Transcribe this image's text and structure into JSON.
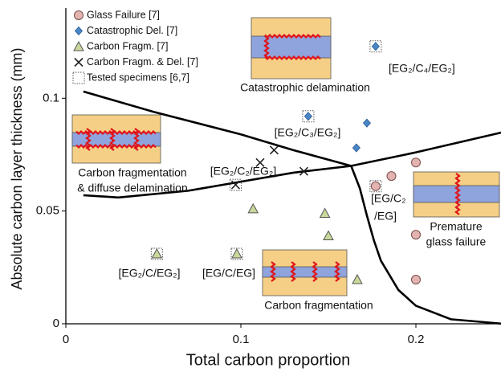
{
  "chart_data": {
    "type": "scatter",
    "xlabel": "Total carbon proportion",
    "ylabel": "Absolute carbon layer thickness (mm)",
    "xlim": [
      0,
      0.25
    ],
    "ylim": [
      0,
      0.14
    ],
    "xticks": [
      0,
      0.1,
      0.2
    ],
    "yticks": [
      0,
      0.05,
      0.1
    ],
    "grid": false,
    "legend": "upper left",
    "series": [
      {
        "name": "Glass Failure [7]",
        "color": "#e3b3b0",
        "marker": "circle",
        "x": [
          0.186,
          0.2,
          0.2,
          0.2,
          0.177
        ],
        "values": [
          0.0655,
          0.0715,
          0.0395,
          0.0196,
          0.061
        ]
      },
      {
        "name": "Catastrophic Del. [7]",
        "color": "#4a86c8",
        "marker": "diamond",
        "x": [
          0.177,
          0.1385,
          0.172,
          0.166
        ],
        "values": [
          0.123,
          0.092,
          0.089,
          0.078
        ]
      },
      {
        "name": "Carbon Fragm. [7]",
        "color": "#c9d89b",
        "marker": "triangle",
        "x": [
          0.052,
          0.0977,
          0.107,
          0.148,
          0.15,
          0.1665
        ],
        "values": [
          0.031,
          0.031,
          0.051,
          0.049,
          0.039,
          0.0196
        ]
      },
      {
        "name": "Carbon Fragm. & Del. [7]",
        "color": "#222222",
        "marker": "cross",
        "x": [
          0.119,
          0.111,
          0.136,
          0.097
        ],
        "values": [
          0.077,
          0.0715,
          0.0676,
          0.0616
        ]
      },
      {
        "name": "Tested specimens [6,7]",
        "color": "#555555",
        "marker": "dotted-square",
        "x": [
          0.052,
          0.0977,
          0.097,
          0.1385,
          0.177,
          0.177
        ],
        "values": [
          0.031,
          0.031,
          0.0616,
          0.092,
          0.061,
          0.123
        ]
      }
    ],
    "boundaries": [
      {
        "color": "#000000",
        "x": [
          0.01,
          0.05,
          0.1,
          0.13,
          0.163
        ],
        "values": [
          0.103,
          0.094,
          0.084,
          0.077,
          0.07
        ]
      },
      {
        "color": "#000000",
        "x": [
          0.01,
          0.03,
          0.07,
          0.1,
          0.13,
          0.163,
          0.2,
          0.25
        ],
        "values": [
          0.057,
          0.056,
          0.059,
          0.063,
          0.067,
          0.07,
          0.076,
          0.085
        ]
      },
      {
        "color": "#000000",
        "x": [
          0.163,
          0.168,
          0.172,
          0.176,
          0.18,
          0.19,
          0.2,
          0.22,
          0.25
        ],
        "values": [
          0.07,
          0.06,
          0.048,
          0.037,
          0.028,
          0.015,
          0.008,
          0.002,
          0
        ]
      }
    ],
    "specimen_labels": [
      "[EG₂/C₄/EG₂]",
      "[EG₂/C₃/EG₂]",
      "[EG₂/C₂/EG₂]",
      "[EG/C₂",
      "/EG]",
      "[EG₂/C/EG₂]",
      "[EG/C/EG]"
    ],
    "region_labels": [
      "Catastrophic delamination",
      "Carbon fragmentation",
      "& diffuse delamination",
      "Premature",
      "glass failure",
      "Carbon fragmentation"
    ]
  }
}
